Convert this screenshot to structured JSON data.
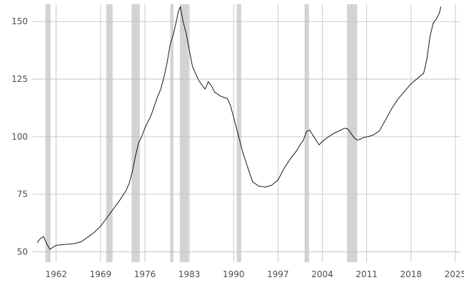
{
  "chart_data": {
    "type": "line",
    "title": "",
    "xlabel": "",
    "ylabel": "",
    "xlim": [
      1958.2,
      2025.8
    ],
    "ylim": [
      45.5,
      157.5
    ],
    "x_ticks": [
      {
        "value": 1962,
        "label": "1962"
      },
      {
        "value": 1969,
        "label": "1969"
      },
      {
        "value": 1976,
        "label": "1976"
      },
      {
        "value": 1983,
        "label": "1983"
      },
      {
        "value": 1990,
        "label": "1990"
      },
      {
        "value": 1997,
        "label": "1997"
      },
      {
        "value": 2004,
        "label": "2004"
      },
      {
        "value": 2011,
        "label": "2011"
      },
      {
        "value": 2018,
        "label": "2018"
      },
      {
        "value": 2025,
        "label": "2025"
      }
    ],
    "y_ticks": [
      {
        "value": 50,
        "label": "50"
      },
      {
        "value": 75,
        "label": "75"
      },
      {
        "value": 100,
        "label": "100"
      },
      {
        "value": 125,
        "label": "125"
      },
      {
        "value": 150,
        "label": "150"
      }
    ],
    "grid": true,
    "legend": "none",
    "recessions": [
      [
        1960.3,
        1961.1
      ],
      [
        1969.9,
        1970.9
      ],
      [
        1973.9,
        1975.2
      ],
      [
        1980.0,
        1980.5
      ],
      [
        1981.5,
        1982.9
      ],
      [
        1990.5,
        1991.2
      ],
      [
        2001.2,
        2001.9
      ],
      [
        2007.9,
        2009.5
      ]
    ],
    "series": [
      {
        "color": "#000000",
        "x": [
          1959.0,
          1959.5,
          1960.0,
          1960.5,
          1961.0,
          1961.5,
          1962.0,
          1963.0,
          1964.0,
          1965.0,
          1966.0,
          1967.0,
          1968.0,
          1969.0,
          1970.0,
          1971.0,
          1972.0,
          1973.0,
          1973.5,
          1974.0,
          1974.5,
          1975.0,
          1975.5,
          1976.0,
          1976.5,
          1977.0,
          1977.5,
          1978.0,
          1978.5,
          1979.0,
          1979.5,
          1980.0,
          1980.5,
          1981.0,
          1981.3,
          1981.6,
          1982.0,
          1982.5,
          1983.0,
          1983.5,
          1984.0,
          1984.5,
          1985.0,
          1985.5,
          1986.0,
          1986.5,
          1987.0,
          1988.0,
          1989.0,
          1989.5,
          1990.0,
          1990.5,
          1991.0,
          1991.5,
          1992.0,
          1992.5,
          1993.0,
          1994.0,
          1995.0,
          1996.0,
          1997.0,
          1998.0,
          1999.0,
          2000.0,
          2000.5,
          2001.0,
          2001.5,
          2002.0,
          2002.5,
          2003.0,
          2003.5,
          2004.0,
          2005.0,
          2006.0,
          2007.0,
          2007.5,
          2008.0,
          2008.5,
          2009.0,
          2009.5,
          2010.0,
          2010.5,
          2011.0,
          2012.0,
          2013.0,
          2014.0,
          2015.0,
          2016.0,
          2017.0,
          2018.0,
          2019.0,
          2019.5,
          2020.0,
          2020.5,
          2021.0,
          2021.5,
          2022.0,
          2022.5,
          2022.7
        ],
        "values": [
          54.0,
          55.5,
          56.2,
          53.0,
          50.5,
          51.5,
          52.5,
          53.0,
          53.5,
          54.0,
          55.0,
          57.0,
          59.0,
          61.5,
          65.0,
          68.5,
          72.0,
          76.0,
          79.0,
          84.0,
          91.0,
          97.0,
          100.0,
          104.0,
          107.0,
          110.0,
          114.0,
          118.0,
          121.0,
          126.0,
          132.0,
          140.0,
          144.0,
          150.0,
          154.0,
          156.0,
          150.0,
          145.0,
          138.0,
          131.0,
          128.0,
          125.0,
          123.0,
          121.0,
          124.0,
          122.0,
          119.0,
          117.0,
          116.0,
          113.0,
          108.0,
          103.0,
          98.0,
          93.0,
          89.0,
          85.0,
          81.0,
          79.0,
          78.5,
          79.0,
          81.0,
          86.0,
          90.0,
          93.5,
          96.0,
          98.0,
          102.0,
          103.0,
          101.0,
          99.0,
          97.0,
          98.5,
          100.5,
          102.0,
          103.0,
          103.5,
          103.0,
          101.0,
          99.0,
          98.0,
          98.5,
          99.5,
          100.0,
          101.0,
          103.0,
          108.0,
          113.0,
          117.0,
          120.0,
          123.0,
          125.0,
          126.0,
          127.0,
          133.0,
          143.0,
          149.0,
          151.0,
          154.0,
          156.5
        ]
      }
    ]
  }
}
